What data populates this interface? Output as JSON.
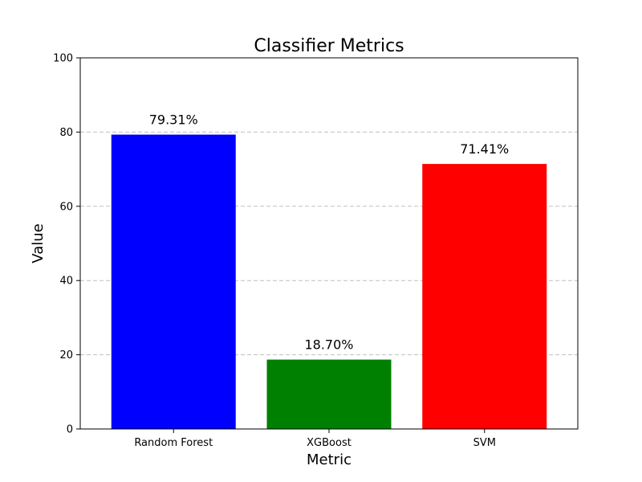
{
  "chart_data": {
    "type": "bar",
    "title": "Classifier Metrics",
    "xlabel": "Metric",
    "ylabel": "Value",
    "categories": [
      "Random Forest",
      "XGBoost",
      "SVM"
    ],
    "values": [
      79.31,
      18.7,
      71.41
    ],
    "data_labels": [
      "79.31%",
      "18.70%",
      "71.41%"
    ],
    "colors": [
      "#0000ff",
      "#008000",
      "#ff0000"
    ],
    "ylim": [
      0,
      100
    ],
    "yticks": [
      0,
      20,
      40,
      60,
      80,
      100
    ],
    "grid": true,
    "grid_axis": "y",
    "grid_style": "dashed"
  }
}
